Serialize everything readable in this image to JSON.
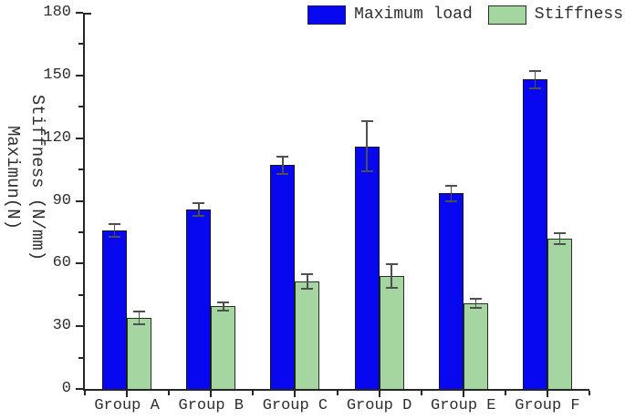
{
  "chart_data": {
    "type": "bar",
    "title": "",
    "categories": [
      "Group A",
      "Group B",
      "Group C",
      "Group D",
      "Group E",
      "Group F"
    ],
    "series": [
      {
        "name": "Maximum load",
        "color": "#0808f0",
        "border_color": "#15151c",
        "values": [
          76,
          86,
          107,
          116,
          93.5,
          148
        ],
        "errors": [
          3,
          3,
          4,
          12,
          3.5,
          4
        ]
      },
      {
        "name": "Stiffness",
        "color": "#a5d6a1",
        "border_color": "#23321f",
        "values": [
          34,
          39.5,
          51.5,
          54,
          41,
          72
        ],
        "errors": [
          3,
          2,
          3.5,
          5.5,
          2,
          2.5
        ]
      }
    ],
    "xlabel": "",
    "ylabel_line1": "Maximun(N)",
    "ylabel_line2": "Stiffness (N/mm)",
    "ylim": [
      0,
      180
    ],
    "yticks": [
      0,
      30,
      60,
      90,
      120,
      150,
      180
    ],
    "minor_tick_step": 15,
    "grid": false,
    "legend_position": "top-right",
    "error_bar_color": "#4f4f4f",
    "axis_color": "#262626",
    "text_color": "#2e2e2e"
  }
}
